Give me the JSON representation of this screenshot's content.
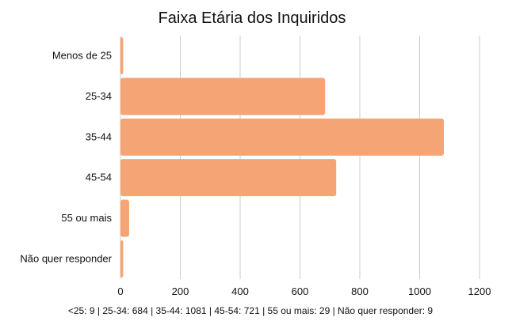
{
  "chart_data": {
    "type": "bar",
    "orientation": "horizontal",
    "title": "Faixa Etária dos Inquiridos",
    "categories": [
      "Menos de 25",
      "25-34",
      "35-44",
      "45-54",
      "55 ou mais",
      "Não quer responder"
    ],
    "values": [
      9,
      684,
      1081,
      721,
      29,
      9
    ],
    "xlim": [
      0,
      1200
    ],
    "xticks": [
      0,
      200,
      400,
      600,
      800,
      1000,
      1200
    ],
    "xlabel": "",
    "ylabel": "",
    "grid": true,
    "legend": "none",
    "bar_color": "#f5a575",
    "footnote": "<25: 9 | 25-34: 684 | 35-44: 1081 | 45-54: 721 | 55 ou mais: 29 | Não quer responder: 9"
  }
}
